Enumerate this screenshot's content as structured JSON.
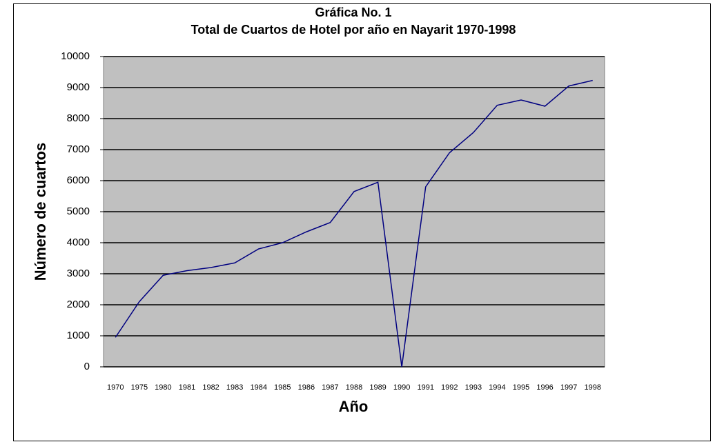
{
  "chart_data": {
    "type": "line",
    "title": "Gráfica No. 1",
    "subtitle": "Total  de Cuartos de Hotel por año en Nayarit 1970-1998",
    "x_label": "Año",
    "y_label": "Número de cuartos",
    "categories": [
      "1970",
      "1975",
      "1980",
      "1981",
      "1982",
      "1983",
      "1984",
      "1985",
      "1986",
      "1987",
      "1988",
      "1989",
      "1990",
      "1991",
      "1992",
      "1993",
      "1994",
      "1995",
      "1996",
      "1997",
      "1998"
    ],
    "series": [
      {
        "name": "Total de cuartos",
        "color": "#000080",
        "values": [
          950,
          2100,
          2950,
          3100,
          3200,
          3350,
          3800,
          4000,
          4350,
          4650,
          5650,
          5950,
          0,
          5800,
          6900,
          7550,
          8430,
          8600,
          8400,
          9050,
          9230
        ]
      }
    ],
    "ylim": [
      0,
      10000
    ],
    "yticks": [
      0,
      1000,
      2000,
      3000,
      4000,
      5000,
      6000,
      7000,
      8000,
      9000,
      10000
    ],
    "grid": true
  }
}
